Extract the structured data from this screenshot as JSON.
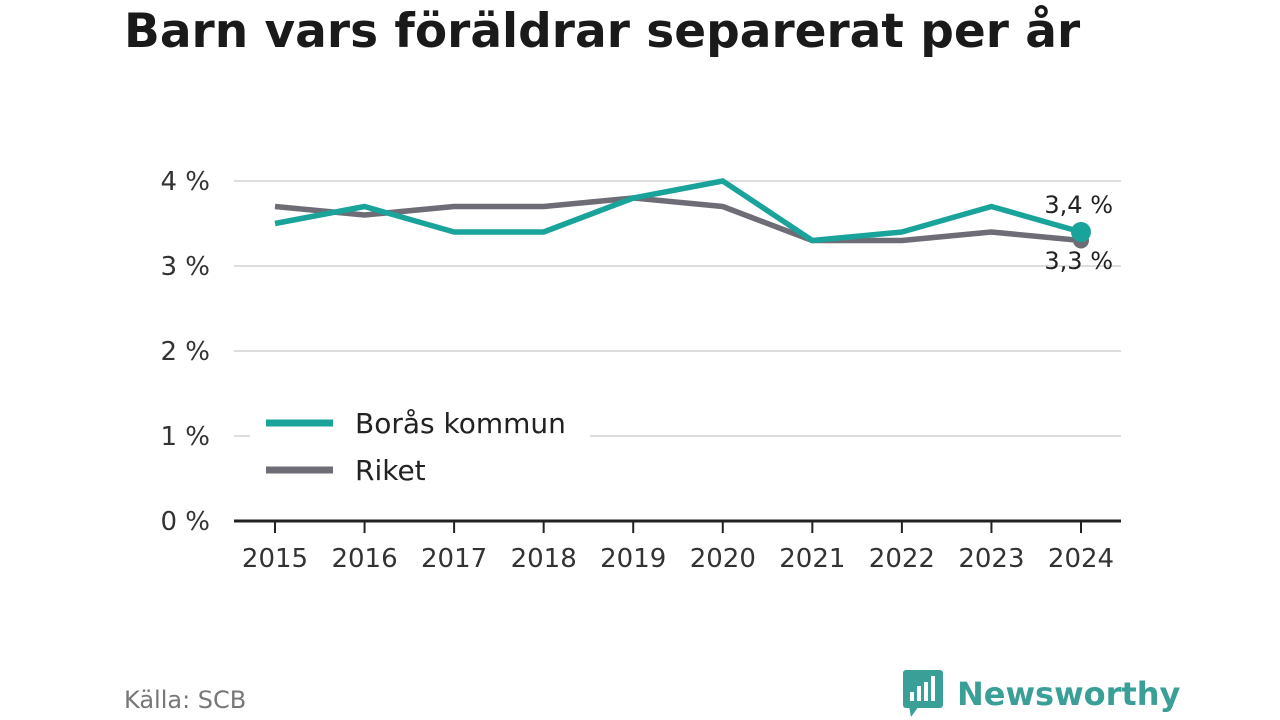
{
  "title": "Barn vars föräldrar separerat per år",
  "source": "Källa: SCB",
  "brand": {
    "name": "Newsworthy",
    "icon": "bar-chart-speech-bubble-icon",
    "color": "#3a9f97"
  },
  "chart_data": {
    "type": "line",
    "title": "Barn vars föräldrar separerat per år",
    "xlabel": "",
    "ylabel": "",
    "x": [
      "2015",
      "2016",
      "2017",
      "2018",
      "2019",
      "2020",
      "2021",
      "2022",
      "2023",
      "2024"
    ],
    "ylim": [
      0,
      4
    ],
    "yticks": [
      0,
      1,
      2,
      3,
      4
    ],
    "ytick_labels": [
      "0 %",
      "1 %",
      "2 %",
      "3 %",
      "4 %"
    ],
    "grid": true,
    "legend_position": "lower-left",
    "series": [
      {
        "name": "Borås kommun",
        "color": "#1aa39a",
        "values": [
          3.5,
          3.7,
          3.4,
          3.4,
          3.8,
          4.0,
          3.3,
          3.4,
          3.7,
          3.4
        ],
        "end_label": "3,4 %"
      },
      {
        "name": "Riket",
        "color": "#6e6c75",
        "values": [
          3.7,
          3.6,
          3.7,
          3.7,
          3.8,
          3.7,
          3.3,
          3.3,
          3.4,
          3.3
        ],
        "end_label": "3,3 %"
      }
    ]
  }
}
